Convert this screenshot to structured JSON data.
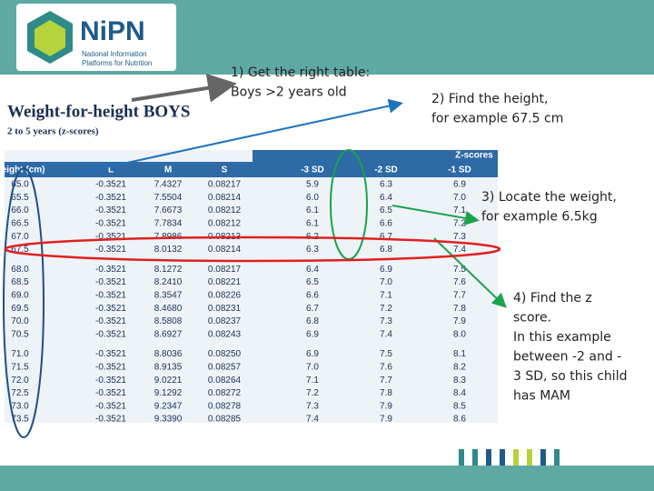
{
  "header": {
    "logo": "NiPN",
    "tagline": [
      "National Information",
      "Platforms for Nutrition"
    ]
  },
  "steps": [
    {
      "lines": [
        "1)  Get the right table:",
        "Boys >2 years old"
      ]
    },
    {
      "lines": [
        "2) Find the height,",
        "for example 67.5 cm"
      ]
    },
    {
      "lines": [
        "3) Locate the weight,",
        "for example 6.5kg"
      ]
    },
    {
      "lines": [
        "4) Find the z",
        "score.",
        "In this example",
        "between -2 and -",
        "3 SD, so this child",
        "has MAM"
      ]
    }
  ],
  "table": {
    "title": "Weight-for-height BOYS",
    "subtitle": "2 to 5 years (z-scores)",
    "group_header": "Z-scores",
    "columns": [
      "Height (cm)",
      "L",
      "M",
      "S",
      "-3 SD",
      "-2 SD",
      "-1 SD"
    ],
    "rows": [
      [
        "65.0",
        "-0.3521",
        "7.4327",
        "0.08217",
        "5.9",
        "6.3",
        "6.9"
      ],
      [
        "65.5",
        "-0.3521",
        "7.5504",
        "0.08214",
        "6.0",
        "6.4",
        "7.0"
      ],
      [
        "66.0",
        "-0.3521",
        "7.6673",
        "0.08212",
        "6.1",
        "6.5",
        "7.1"
      ],
      [
        "66.5",
        "-0.3521",
        "7.7834",
        "0.08212",
        "6.1",
        "6.6",
        "7.2"
      ],
      [
        "67.0",
        "-0.3521",
        "7.8986",
        "0.08213",
        "6.2",
        "6.7",
        "7.3"
      ],
      [
        "67.5",
        "-0.3521",
        "8.0132",
        "0.08214",
        "6.3",
        "6.8",
        "7.4"
      ],
      [
        "68.0",
        "-0.3521",
        "8.1272",
        "0.08217",
        "6.4",
        "6.9",
        "7.5"
      ],
      [
        "68.5",
        "-0.3521",
        "8.2410",
        "0.08221",
        "6.5",
        "7.0",
        "7.6"
      ],
      [
        "69.0",
        "-0.3521",
        "8.3547",
        "0.08226",
        "6.6",
        "7.1",
        "7.7"
      ],
      [
        "69.5",
        "-0.3521",
        "8.4680",
        "0.08231",
        "6.7",
        "7.2",
        "7.8"
      ],
      [
        "70.0",
        "-0.3521",
        "8.5808",
        "0.08237",
        "6.8",
        "7.3",
        "7.9"
      ],
      [
        "70.5",
        "-0.3521",
        "8.6927",
        "0.08243",
        "6.9",
        "7.4",
        "8.0"
      ],
      [
        "71.0",
        "-0.3521",
        "8.8036",
        "0.08250",
        "6.9",
        "7.5",
        "8.1"
      ],
      [
        "71.5",
        "-0.3521",
        "8.9135",
        "0.08257",
        "7.0",
        "7.6",
        "8.2"
      ],
      [
        "72.0",
        "-0.3521",
        "9.0221",
        "0.08264",
        "7.1",
        "7.7",
        "8.3"
      ],
      [
        "72.5",
        "-0.3521",
        "9.1292",
        "0.08272",
        "7.2",
        "7.8",
        "8.4"
      ],
      [
        "73.0",
        "-0.3521",
        "9.2347",
        "0.08278",
        "7.3",
        "7.9",
        "8.5"
      ],
      [
        "73.5",
        "-0.3521",
        "9.3390",
        "0.08285",
        "7.4",
        "7.9",
        "8.6"
      ]
    ]
  }
}
